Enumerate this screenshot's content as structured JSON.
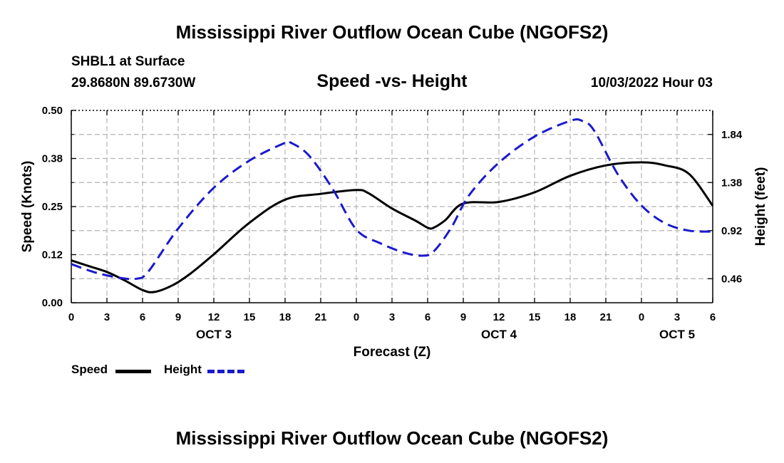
{
  "page": {
    "title": "Mississippi River Outflow Ocean Cube (NGOFS2)",
    "footer_title": "Mississippi River Outflow Ocean Cube (NGOFS2)"
  },
  "header": {
    "station": "SHBL1 at Surface",
    "coords": "29.8680N  89.6730W",
    "subtitle": "Speed -vs- Height",
    "datetime": "10/03/2022 Hour 03"
  },
  "legend": {
    "speed_label": "Speed",
    "height_label": "Height"
  },
  "colors": {
    "speed": "#000000",
    "height": "#1a1acc",
    "grid": "#b4b4b4"
  },
  "chart_data": {
    "type": "line",
    "title": "Speed -vs- Height",
    "xlabel": "Forecast (Z)",
    "ylabel": "Speed (Knots)",
    "y2label": "Height (feet)",
    "x_range": [
      0,
      54
    ],
    "ylim": [
      0,
      0.5
    ],
    "y2lim": [
      0.23,
      2.07
    ],
    "x_ticks": [
      0,
      3,
      6,
      9,
      12,
      15,
      18,
      21,
      24,
      27,
      30,
      33,
      36,
      39,
      42,
      45,
      48,
      51,
      54
    ],
    "x_tick_labels": [
      "0",
      "3",
      "6",
      "9",
      "12",
      "15",
      "18",
      "21",
      "0",
      "3",
      "6",
      "9",
      "12",
      "15",
      "18",
      "21",
      "0",
      "3",
      "6"
    ],
    "date_labels": [
      {
        "x": 12,
        "label": "OCT 3"
      },
      {
        "x": 36,
        "label": "OCT 4"
      },
      {
        "x": 51,
        "label": "OCT 5"
      }
    ],
    "y_ticks": [
      0.0,
      0.125,
      0.25,
      0.375,
      0.5
    ],
    "y_tick_labels": [
      "0.00",
      "0.12",
      "0.25",
      "0.38",
      "0.50"
    ],
    "y2_ticks": [
      0.46,
      0.92,
      1.38,
      1.84
    ],
    "y2_tick_labels": [
      "0.46",
      "0.92",
      "1.38",
      "1.84"
    ],
    "grid": true,
    "series": [
      {
        "name": "Speed",
        "axis": "left",
        "style": "solid",
        "x": [
          0,
          1.5,
          3,
          4.5,
          6,
          7,
          8.5,
          10,
          12,
          15,
          18,
          21,
          24,
          25,
          27,
          29,
          30,
          30.5,
          31.5,
          33,
          36,
          39,
          42,
          45,
          48,
          50,
          52,
          54
        ],
        "y": [
          0.11,
          0.095,
          0.08,
          0.058,
          0.033,
          0.028,
          0.045,
          0.075,
          0.126,
          0.208,
          0.268,
          0.283,
          0.293,
          0.285,
          0.245,
          0.213,
          0.195,
          0.195,
          0.215,
          0.258,
          0.262,
          0.287,
          0.33,
          0.357,
          0.365,
          0.357,
          0.335,
          0.252
        ]
      },
      {
        "name": "Height",
        "axis": "right",
        "style": "dashed",
        "x": [
          0,
          2,
          4,
          5.5,
          6.5,
          9,
          12,
          15,
          18,
          18.5,
          20,
          22,
          24,
          26,
          28,
          29.5,
          30.5,
          32,
          33.5,
          36,
          39,
          42,
          43,
          44,
          46,
          48,
          50,
          52,
          54
        ],
        "y": [
          0.6,
          0.52,
          0.47,
          0.46,
          0.53,
          0.94,
          1.33,
          1.59,
          1.76,
          1.76,
          1.64,
          1.32,
          0.93,
          0.8,
          0.71,
          0.68,
          0.72,
          0.95,
          1.26,
          1.57,
          1.82,
          1.97,
          1.97,
          1.88,
          1.46,
          1.16,
          0.99,
          0.92,
          0.91
        ]
      }
    ]
  }
}
